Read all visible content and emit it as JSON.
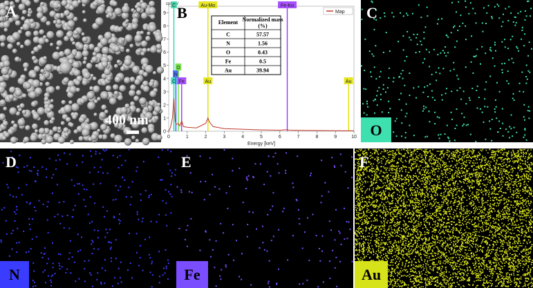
{
  "panels": {
    "a": {
      "label": "A",
      "scale_bar": "400 nm"
    },
    "b": {
      "label": "B"
    },
    "c": {
      "label": "C",
      "element": "O",
      "color": "#3fe0b0"
    },
    "d": {
      "label": "D",
      "element": "N",
      "color": "#3a3cff"
    },
    "e": {
      "label": "E",
      "element": "Fe",
      "color": "#7a4dff"
    },
    "f": {
      "label": "F",
      "element": "Au",
      "color": "#d6e21a"
    }
  },
  "chart_data": {
    "type": "line",
    "y_label": "cps/eV",
    "x_label": "Energy [keV]",
    "x": [
      0,
      0.1,
      0.2,
      0.28,
      0.35,
      0.4,
      0.52,
      0.6,
      0.7,
      0.8,
      1.0,
      1.5,
      2.0,
      2.12,
      2.2,
      2.4,
      3,
      4,
      5,
      6,
      6.4,
      6.5,
      7,
      8,
      9,
      10
    ],
    "series": [
      {
        "name": "Map",
        "color": "#c0392b",
        "values": [
          0,
          0.3,
          1,
          2.5,
          0.8,
          0.5,
          0.6,
          0.4,
          0.8,
          0.35,
          0.3,
          0.25,
          0.6,
          1.0,
          0.7,
          0.35,
          0.2,
          0.15,
          0.1,
          0.08,
          0.12,
          0.08,
          0.07,
          0.05,
          0.04,
          0.03
        ]
      }
    ],
    "xlim": [
      0,
      10
    ],
    "xticks": [
      0,
      1,
      2,
      3,
      4,
      5,
      6,
      7,
      8,
      9,
      10
    ],
    "ylim": [
      0,
      9.5
    ],
    "yticks": [
      0,
      1,
      2,
      3,
      4,
      5,
      6,
      7,
      8,
      9
    ],
    "legend": "top-right",
    "element_lines": [
      {
        "label": "C",
        "energy": 0.28,
        "color": "#2fd6a6"
      },
      {
        "label": "C",
        "energy": 0.28,
        "color": "#2fd6c0"
      },
      {
        "label": "N",
        "energy": 0.39,
        "color": "#3355ff"
      },
      {
        "label": "O",
        "energy": 0.52,
        "color": "#66dd33"
      },
      {
        "label": "Fe",
        "energy": 0.7,
        "color": "#9933ff"
      },
      {
        "label": "Au-Mα",
        "energy": 2.12,
        "color": "#e0e000"
      },
      {
        "label": "Au",
        "energy": 2.12,
        "color": "#e0e000"
      },
      {
        "label": "Fe-Kα",
        "energy": 6.4,
        "color": "#9933ff"
      },
      {
        "label": "Au",
        "energy": 9.71,
        "color": "#e0e000"
      }
    ]
  },
  "table": {
    "header": [
      "Element",
      "Normalized mass (%)"
    ],
    "rows": [
      [
        "C",
        57.57
      ],
      [
        "N",
        1.56
      ],
      [
        "O",
        0.43
      ],
      [
        "Fe",
        0.5
      ],
      [
        "Au",
        39.94
      ]
    ]
  }
}
